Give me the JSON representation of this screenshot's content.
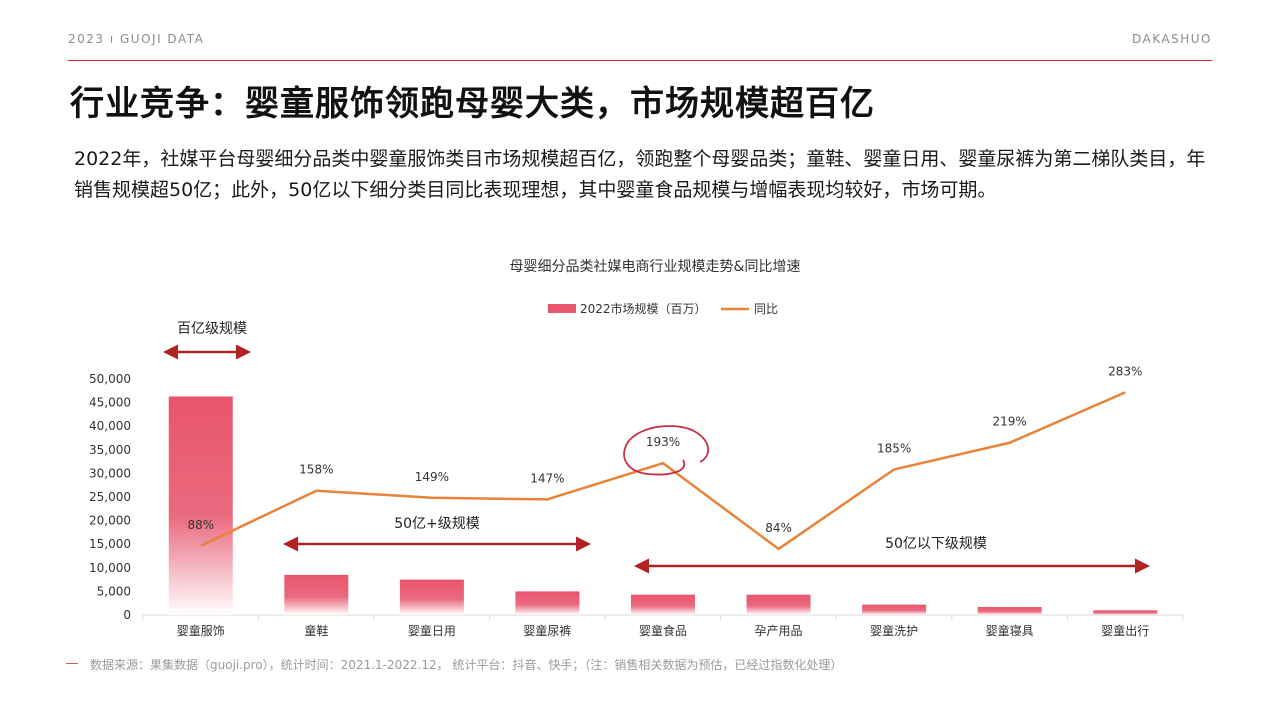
{
  "header": {
    "left_tag": "2023 ı GUOJI DATA",
    "right_tag": "DAKASHUO"
  },
  "title": "行业竞争：婴童服饰领跑母婴大类，市场规模超百亿",
  "description": "2022年，社媒平台母婴细分品类中婴童服饰类目市场规模超百亿，领跑整个母婴品类；童鞋、婴童日用、婴童尿裤为第二梯队类目，年销售规模超50亿；此外，50亿以下细分类目同比表现理想，其中婴童食品规模与增幅表现均较好，市场可期。",
  "chart_data": {
    "type": "bar",
    "title": "母婴细分品类社媒电商行业规模走势&同比增速",
    "categories": [
      "婴童服饰",
      "童鞋",
      "婴童日用",
      "婴童尿裤",
      "婴童食品",
      "孕产用品",
      "婴童洗护",
      "婴童寝具",
      "婴童出行"
    ],
    "series": [
      {
        "name": "2022市场规模（百万）",
        "type": "bar",
        "values": [
          46300,
          8500,
          7500,
          5000,
          4300,
          4300,
          2200,
          1700,
          1000
        ]
      },
      {
        "name": "同比",
        "type": "line",
        "values": [
          88,
          158,
          149,
          147,
          193,
          84,
          185,
          219,
          283
        ],
        "labels": [
          "88%",
          "158%",
          "149%",
          "147%",
          "193%",
          "84%",
          "185%",
          "219%",
          "283%"
        ]
      }
    ],
    "y_ticks": [
      "50,000",
      "45,000",
      "40,000",
      "35,000",
      "30,000",
      "25,000",
      "20,000",
      "15,000",
      "10,000",
      "5,000",
      "0"
    ],
    "ylim": [
      0,
      50000
    ],
    "y2lim": [
      0,
      300
    ],
    "legend_position": "top-center",
    "annotations": {
      "tier1": "百亿级规模",
      "tier2": "50亿+级规模",
      "tier3": "50亿以下级规模"
    },
    "colors": {
      "bar": "#e8556d",
      "line": "#e8833a",
      "arrow": "#b22222"
    }
  },
  "source": "数据来源：果集数据（guoji.pro），统计时间：2021.1-2022.12，  统计平台：抖音、快手；（注：销售相关数据为预估，已经过指数化处理）"
}
